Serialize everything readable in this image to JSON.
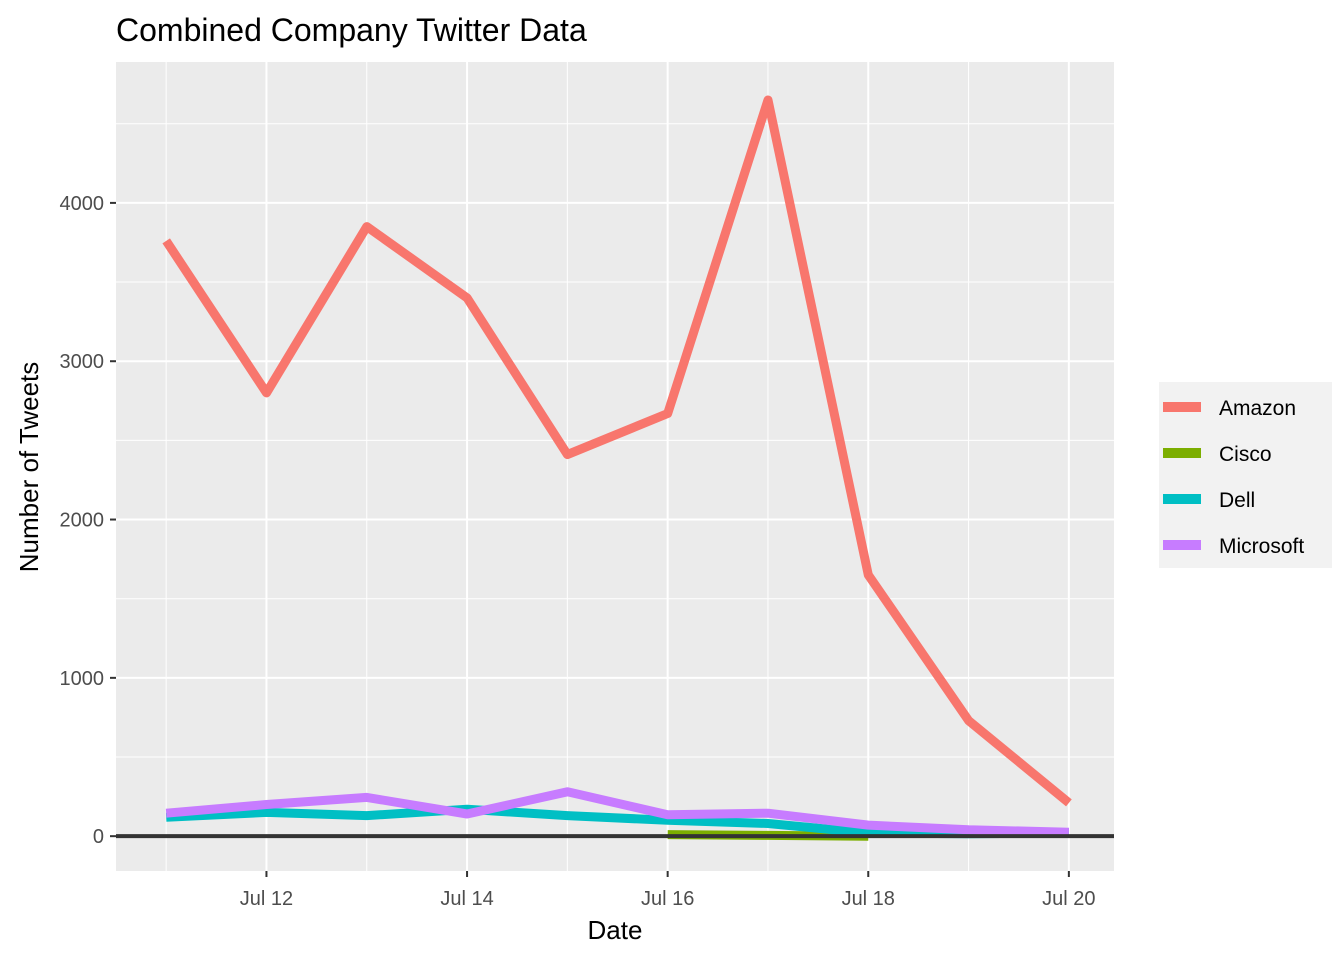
{
  "chart_data": {
    "type": "line",
    "title": "Combined Company Twitter Data",
    "xlabel": "Date",
    "ylabel": "Number of Tweets",
    "x": [
      "Jul 11",
      "Jul 12",
      "Jul 13",
      "Jul 14",
      "Jul 15",
      "Jul 16",
      "Jul 17",
      "Jul 18",
      "Jul 19",
      "Jul 20"
    ],
    "x_ticks": [
      {
        "label": "Jul 12",
        "value": 12
      },
      {
        "label": "Jul 14",
        "value": 14
      },
      {
        "label": "Jul 16",
        "value": 16
      },
      {
        "label": "Jul 18",
        "value": 18
      },
      {
        "label": "Jul 20",
        "value": 20
      }
    ],
    "y_ticks": [
      0,
      1000,
      2000,
      3000,
      4000
    ],
    "y_tick_labels": [
      "0",
      "1000",
      "2000",
      "3000",
      "4000"
    ],
    "xlim": [
      10.5,
      20.45
    ],
    "ylim": [
      -220,
      4890
    ],
    "grid": true,
    "legend_position": "right",
    "hline": 0,
    "series": [
      {
        "name": "Amazon",
        "color": "#F8766D",
        "x": [
          11,
          12,
          13,
          14,
          15,
          16,
          17,
          18,
          19,
          20
        ],
        "values": [
          3760,
          2800,
          3850,
          3400,
          2410,
          2670,
          4650,
          1650,
          730,
          210
        ]
      },
      {
        "name": "Cisco",
        "color": "#7CAE00",
        "x": [
          16,
          17,
          18
        ],
        "values": [
          10,
          5,
          0
        ]
      },
      {
        "name": "Dell",
        "color": "#00BFC4",
        "x": [
          11,
          12,
          13,
          14,
          15,
          16,
          17,
          18,
          19,
          20
        ],
        "values": [
          120,
          150,
          130,
          170,
          130,
          100,
          80,
          20,
          15,
          20
        ]
      },
      {
        "name": "Microsoft",
        "color": "#C77CFF",
        "x": [
          11,
          12,
          13,
          14,
          15,
          16,
          17,
          18,
          19,
          20
        ],
        "values": [
          145,
          200,
          245,
          140,
          280,
          135,
          145,
          70,
          40,
          25
        ]
      }
    ]
  }
}
